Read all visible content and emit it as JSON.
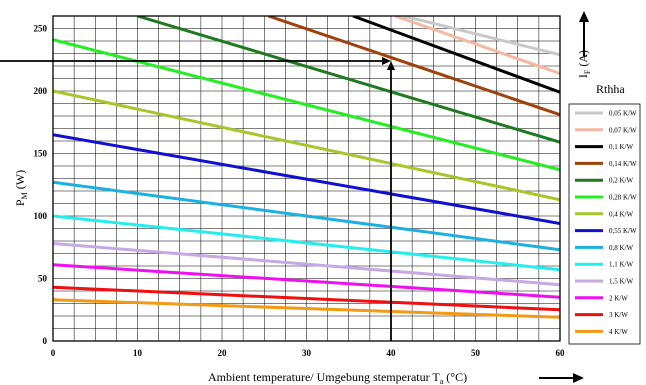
{
  "chart_data": {
    "type": "line",
    "xlabel_main": "Ambient temperature/ Umgebung stemperatur T",
    "xlabel_sub": "a",
    "xlabel_unit": " (°C)",
    "ylabel_main": "P",
    "ylabel_sub": "M",
    "ylabel_unit": " (W)",
    "right_axis_label_main": "I",
    "right_axis_label_sub": "F",
    "right_axis_label_unit": " (A)",
    "legend_title": "Rthha",
    "xlim": [
      0,
      60
    ],
    "ylim": [
      0,
      260
    ],
    "x_ticks": [
      "0",
      "10",
      "20",
      "30",
      "40",
      "50",
      "60"
    ],
    "y_ticks": [
      "0",
      "50",
      "100",
      "150",
      "200",
      "250"
    ],
    "grid": true,
    "legend_position": "right",
    "annotation": {
      "x": 40,
      "y": 224
    },
    "series": [
      {
        "name": "0,05 K/W",
        "color": "#c8c8c8",
        "x": [
          41.5,
          60
        ],
        "y": [
          260,
          229
        ]
      },
      {
        "name": "0,07 K/W",
        "color": "#f4b8a0",
        "x": [
          40.5,
          60
        ],
        "y": [
          260,
          214
        ]
      },
      {
        "name": "0,1 K/W",
        "color": "#000000",
        "x": [
          35.5,
          60
        ],
        "y": [
          260,
          199
        ]
      },
      {
        "name": "0,14 K/W",
        "color": "#a0400a",
        "x": [
          25.5,
          60
        ],
        "y": [
          260,
          181
        ]
      },
      {
        "name": "0,2 K/W",
        "color": "#1e7a1e",
        "x": [
          10,
          60
        ],
        "y": [
          260,
          159
        ]
      },
      {
        "name": "0,28 K/W",
        "color": "#22ee22",
        "x": [
          0,
          60
        ],
        "y": [
          241,
          137
        ]
      },
      {
        "name": "0,4 K/W",
        "color": "#a4c82a",
        "x": [
          0,
          60
        ],
        "y": [
          200,
          113
        ]
      },
      {
        "name": "0,55 K/W",
        "color": "#1010d0",
        "x": [
          0,
          60
        ],
        "y": [
          165,
          94
        ]
      },
      {
        "name": "0,8 K/W",
        "color": "#1ab0e0",
        "x": [
          0,
          60
        ],
        "y": [
          127,
          73
        ]
      },
      {
        "name": "1,1 K/W",
        "color": "#22eeee",
        "x": [
          0,
          60
        ],
        "y": [
          100,
          57
        ]
      },
      {
        "name": "1,5 K/W",
        "color": "#c8a8e4",
        "x": [
          0,
          60
        ],
        "y": [
          78,
          45
        ]
      },
      {
        "name": "2 K/W",
        "color": "#ee10ee",
        "x": [
          0,
          60
        ],
        "y": [
          61,
          35
        ]
      },
      {
        "name": "3 K/W",
        "color": "#ee1010",
        "x": [
          0,
          60
        ],
        "y": [
          43,
          25
        ]
      },
      {
        "name": "4 K/W",
        "color": "#f29a14",
        "x": [
          0,
          60
        ],
        "y": [
          33,
          19
        ]
      }
    ]
  }
}
